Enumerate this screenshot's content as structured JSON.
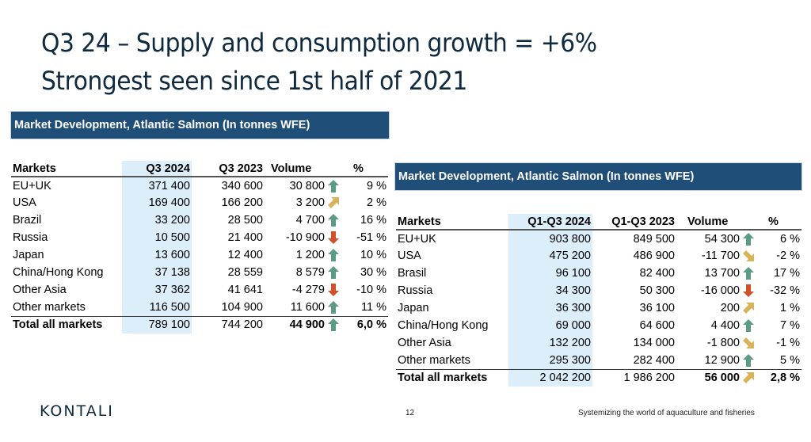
{
  "title": {
    "line1": "Q3 24 – Supply and consumption growth = +6%",
    "line2": "Strongest seen since 1st half of 2021"
  },
  "colors": {
    "banner": "#1f4e79",
    "highlight_column": "#ddeefb",
    "arrow_up": "#5b9a84",
    "arrow_diag": "#d9b35a",
    "arrow_down": "#d0502a"
  },
  "table_q3": {
    "banner": "Market Development, Atlantic Salmon (In tonnes WFE)",
    "headers": [
      "Markets",
      "Q3 2024",
      "Q3 2023",
      "Volume",
      "%"
    ],
    "rows": [
      {
        "market": "EU+UK",
        "cur": "371 400",
        "prev": "340 600",
        "volume": "30 800",
        "trend": "up",
        "pct": "9 %"
      },
      {
        "market": "USA",
        "cur": "169 400",
        "prev": "166 200",
        "volume": "3 200",
        "trend": "up-right",
        "pct": "2 %"
      },
      {
        "market": "Brazil",
        "cur": "33 200",
        "prev": "28 500",
        "volume": "4 700",
        "trend": "up",
        "pct": "16 %"
      },
      {
        "market": "Russia",
        "cur": "10 500",
        "prev": "21 400",
        "volume": "-10 900",
        "trend": "down",
        "pct": "-51 %"
      },
      {
        "market": "Japan",
        "cur": "13 600",
        "prev": "12 400",
        "volume": "1 200",
        "trend": "up",
        "pct": "10 %"
      },
      {
        "market": "China/Hong Kong",
        "cur": "37 138",
        "prev": "28 559",
        "volume": "8 579",
        "trend": "up",
        "pct": "30 %"
      },
      {
        "market": "Other Asia",
        "cur": "37 362",
        "prev": "41 641",
        "volume": "-4 279",
        "trend": "down",
        "pct": "-10 %"
      },
      {
        "market": "Other markets",
        "cur": "116 500",
        "prev": "104 900",
        "volume": "11 600",
        "trend": "up",
        "pct": "11 %"
      }
    ],
    "total": {
      "market": "Total all markets",
      "cur": "789 100",
      "prev": "744 200",
      "volume": "44 900",
      "trend": "up",
      "pct": "6,0 %"
    }
  },
  "table_ytd": {
    "banner": "Market Development, Atlantic Salmon (In tonnes WFE)",
    "headers": [
      "Markets",
      "Q1-Q3 2024",
      "Q1-Q3 2023",
      "Volume",
      "%"
    ],
    "rows": [
      {
        "market": "EU+UK",
        "cur": "903 800",
        "prev": "849 500",
        "volume": "54 300",
        "trend": "up",
        "pct": "6 %"
      },
      {
        "market": "USA",
        "cur": "475 200",
        "prev": "486 900",
        "volume": "-11 700",
        "trend": "down-right",
        "pct": "-2 %"
      },
      {
        "market": "Brasil",
        "cur": "96 100",
        "prev": "82 400",
        "volume": "13 700",
        "trend": "up",
        "pct": "17 %"
      },
      {
        "market": "Russia",
        "cur": "34 300",
        "prev": "50 300",
        "volume": "-16 000",
        "trend": "down",
        "pct": "-32 %"
      },
      {
        "market": "Japan",
        "cur": "36 300",
        "prev": "36 100",
        "volume": "200",
        "trend": "up-right",
        "pct": "1 %"
      },
      {
        "market": "China/Hong Kong",
        "cur": "69 000",
        "prev": "64 600",
        "volume": "4 400",
        "trend": "up",
        "pct": "7 %"
      },
      {
        "market": "Other Asia",
        "cur": "132 200",
        "prev": "134 000",
        "volume": "-1 800",
        "trend": "down-right",
        "pct": "-1 %"
      },
      {
        "market": "Other markets",
        "cur": "295 300",
        "prev": "282 400",
        "volume": "12 900",
        "trend": "up",
        "pct": "5 %"
      }
    ],
    "total": {
      "market": "Total all markets",
      "cur": "2 042 200",
      "prev": "1 986 200",
      "volume": "56 000",
      "trend": "up-right",
      "pct": "2,8 %"
    }
  },
  "footer": {
    "logo": "KONTALI",
    "page_number": "12",
    "tagline": "Systemizing the world of aquaculture and fisheries"
  }
}
